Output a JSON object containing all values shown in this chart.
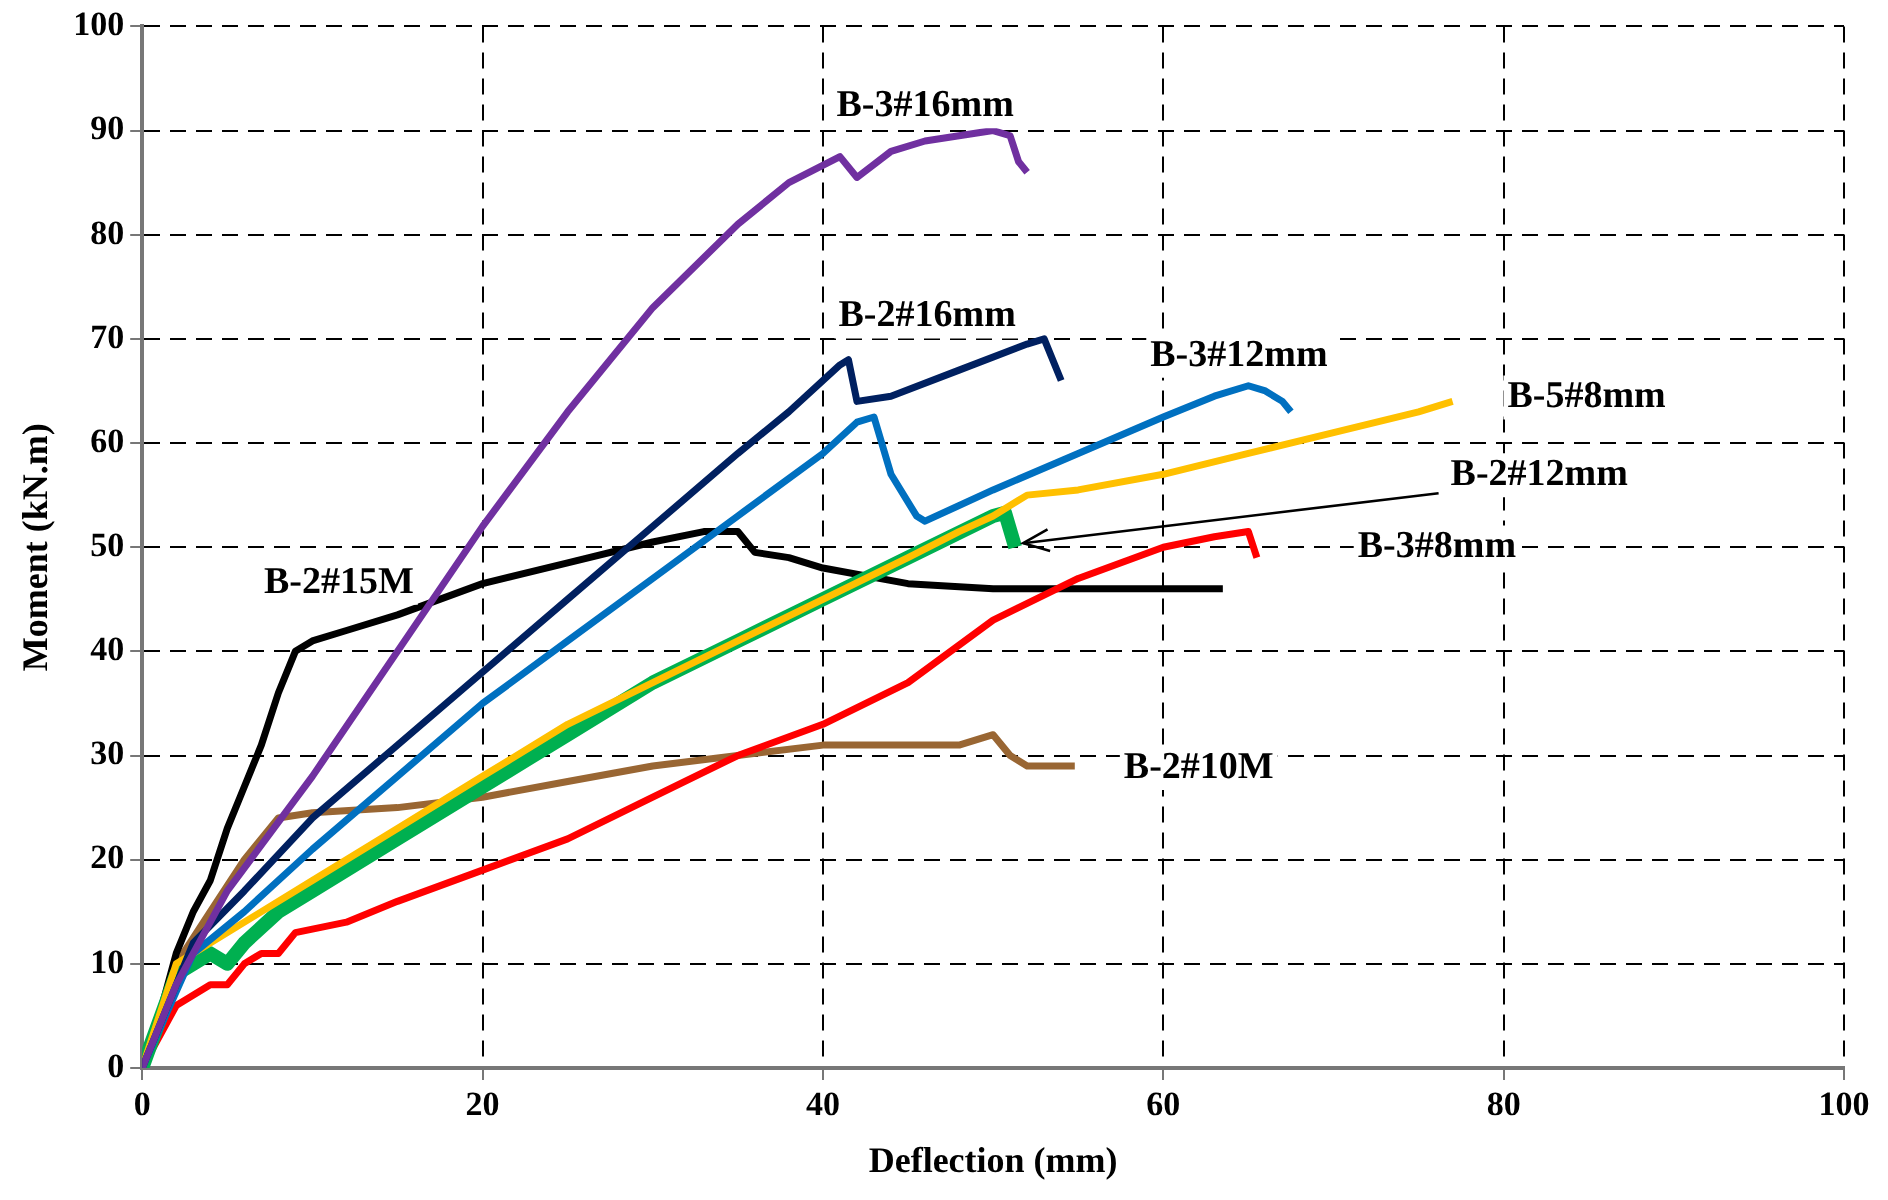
{
  "chart_data": {
    "type": "line",
    "xlabel": "Deflection (mm)",
    "ylabel": "Moment (kN.m)",
    "xlim": [
      0,
      100
    ],
    "ylim": [
      0,
      100
    ],
    "xticks": [
      0,
      20,
      40,
      60,
      80,
      100
    ],
    "yticks": [
      0,
      10,
      20,
      30,
      40,
      50,
      60,
      70,
      80,
      90,
      100
    ],
    "grid": true,
    "legend": false,
    "marker": "none",
    "line_style": "solid",
    "series": [
      {
        "name": "B-3#16mm",
        "color": "#7030a0",
        "x": [
          0,
          2,
          5,
          10,
          15,
          20,
          25,
          30,
          35,
          38,
          41,
          42,
          44,
          46,
          48,
          50,
          51,
          51.5,
          52
        ],
        "values": [
          0,
          8,
          17,
          28,
          40,
          52,
          63,
          73,
          81,
          85,
          87.5,
          85.5,
          88,
          89,
          89.5,
          90,
          89.5,
          87,
          86
        ]
      },
      {
        "name": "B-2#16mm",
        "color": "#002060",
        "x": [
          0,
          3,
          6,
          10,
          15,
          20,
          25,
          30,
          35,
          38,
          41,
          41.5,
          42,
          44,
          48,
          52,
          53,
          54
        ],
        "values": [
          0,
          12,
          17,
          24,
          31,
          38,
          45,
          52,
          59,
          63,
          67.5,
          68,
          64,
          64.5,
          67,
          69.5,
          70,
          66
        ]
      },
      {
        "name": "B-3#12mm",
        "color": "#0070c0",
        "x": [
          0,
          3,
          6,
          10,
          15,
          20,
          25,
          30,
          35,
          40,
          42,
          43,
          44,
          45.5,
          46,
          50,
          55,
          60,
          63,
          65,
          66,
          67,
          67.5
        ],
        "values": [
          0,
          11,
          15,
          21,
          28,
          35,
          41,
          47,
          53,
          59,
          62,
          62.5,
          57,
          53,
          52.5,
          55.5,
          59,
          62.5,
          64.5,
          65.5,
          65,
          64,
          63
        ]
      },
      {
        "name": "B-5#8mm",
        "color": "#ffc000",
        "x": [
          0,
          2,
          5,
          10,
          15,
          20,
          25,
          30,
          35,
          40,
          45,
          48,
          50,
          52,
          55,
          60,
          65,
          70,
          75,
          77
        ],
        "values": [
          0,
          10,
          13,
          18,
          23,
          28,
          33,
          37,
          41,
          45,
          49,
          51.5,
          53,
          55,
          55.5,
          57,
          59,
          61,
          63,
          64
        ]
      },
      {
        "name": "B-2#12mm",
        "color": "#00b050",
        "x": [
          0,
          2,
          4,
          5,
          6,
          8,
          10,
          15,
          20,
          25,
          30,
          35,
          40,
          45,
          50,
          50.7,
          51.3
        ],
        "values": [
          0,
          9,
          11,
          10,
          12,
          15,
          17,
          22,
          27,
          32,
          37,
          41,
          45,
          49,
          53,
          53.3,
          50
        ]
      },
      {
        "name": "B-3#8mm",
        "color": "#ff0000",
        "x": [
          0,
          2,
          4,
          5,
          6,
          7,
          8,
          9,
          12,
          15,
          20,
          25,
          30,
          35,
          40,
          45,
          50,
          55,
          60,
          63,
          65,
          65.5
        ],
        "values": [
          0,
          6,
          8,
          8,
          10,
          11,
          11,
          13,
          14,
          16,
          19,
          22,
          26,
          30,
          33,
          37,
          43,
          47,
          50,
          51,
          51.5,
          49
        ]
      },
      {
        "name": "B-2#15M",
        "color": "#000000",
        "x": [
          0,
          1,
          2,
          3,
          4,
          5,
          6,
          7,
          8,
          9,
          10,
          12,
          15,
          20,
          25,
          30,
          33,
          35,
          36,
          38,
          40,
          45,
          50,
          55,
          60,
          63.5
        ],
        "values": [
          0,
          5,
          11,
          15,
          18,
          23,
          27,
          31,
          36,
          40,
          41,
          42,
          43.5,
          46.5,
          48.5,
          50.5,
          51.5,
          51.5,
          49.5,
          49,
          48,
          46.5,
          46,
          46,
          46,
          46
        ]
      },
      {
        "name": "B-2#10M",
        "color": "#996633",
        "x": [
          0,
          2,
          4,
          6,
          8,
          10,
          15,
          20,
          25,
          30,
          35,
          40,
          45,
          48,
          50,
          51,
          52,
          54.8
        ],
        "values": [
          0,
          10,
          15,
          20,
          24,
          24.5,
          25,
          26,
          27.5,
          29,
          30,
          31,
          31,
          31,
          32,
          30,
          29,
          29
        ]
      }
    ]
  }
}
